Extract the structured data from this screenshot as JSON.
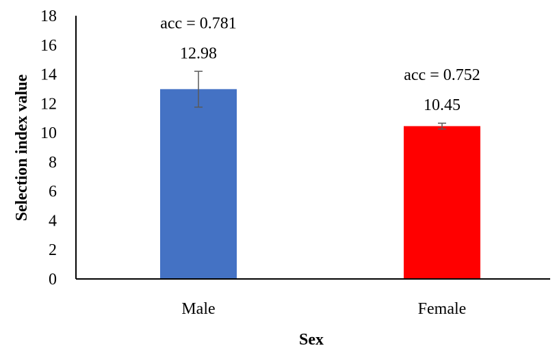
{
  "chart_data": {
    "type": "bar",
    "categories": [
      "Male",
      "Female"
    ],
    "values": [
      12.98,
      10.45
    ],
    "error_bars": [
      {
        "low": 11.75,
        "high": 14.2
      },
      {
        "low": 10.25,
        "high": 10.65
      }
    ],
    "data_labels": [
      "12.98",
      "10.45"
    ],
    "annotations": [
      "acc = 0.781",
      "acc = 0.752"
    ],
    "bar_colors": [
      "#4472C4",
      "#FF0000"
    ],
    "error_bar_color": "#595959",
    "xlabel": "Sex",
    "ylabel": "Selection index value",
    "ylim": [
      0,
      18
    ],
    "yticks": [
      0,
      2,
      4,
      6,
      8,
      10,
      12,
      14,
      16,
      18
    ],
    "grid": false,
    "legend": false
  }
}
